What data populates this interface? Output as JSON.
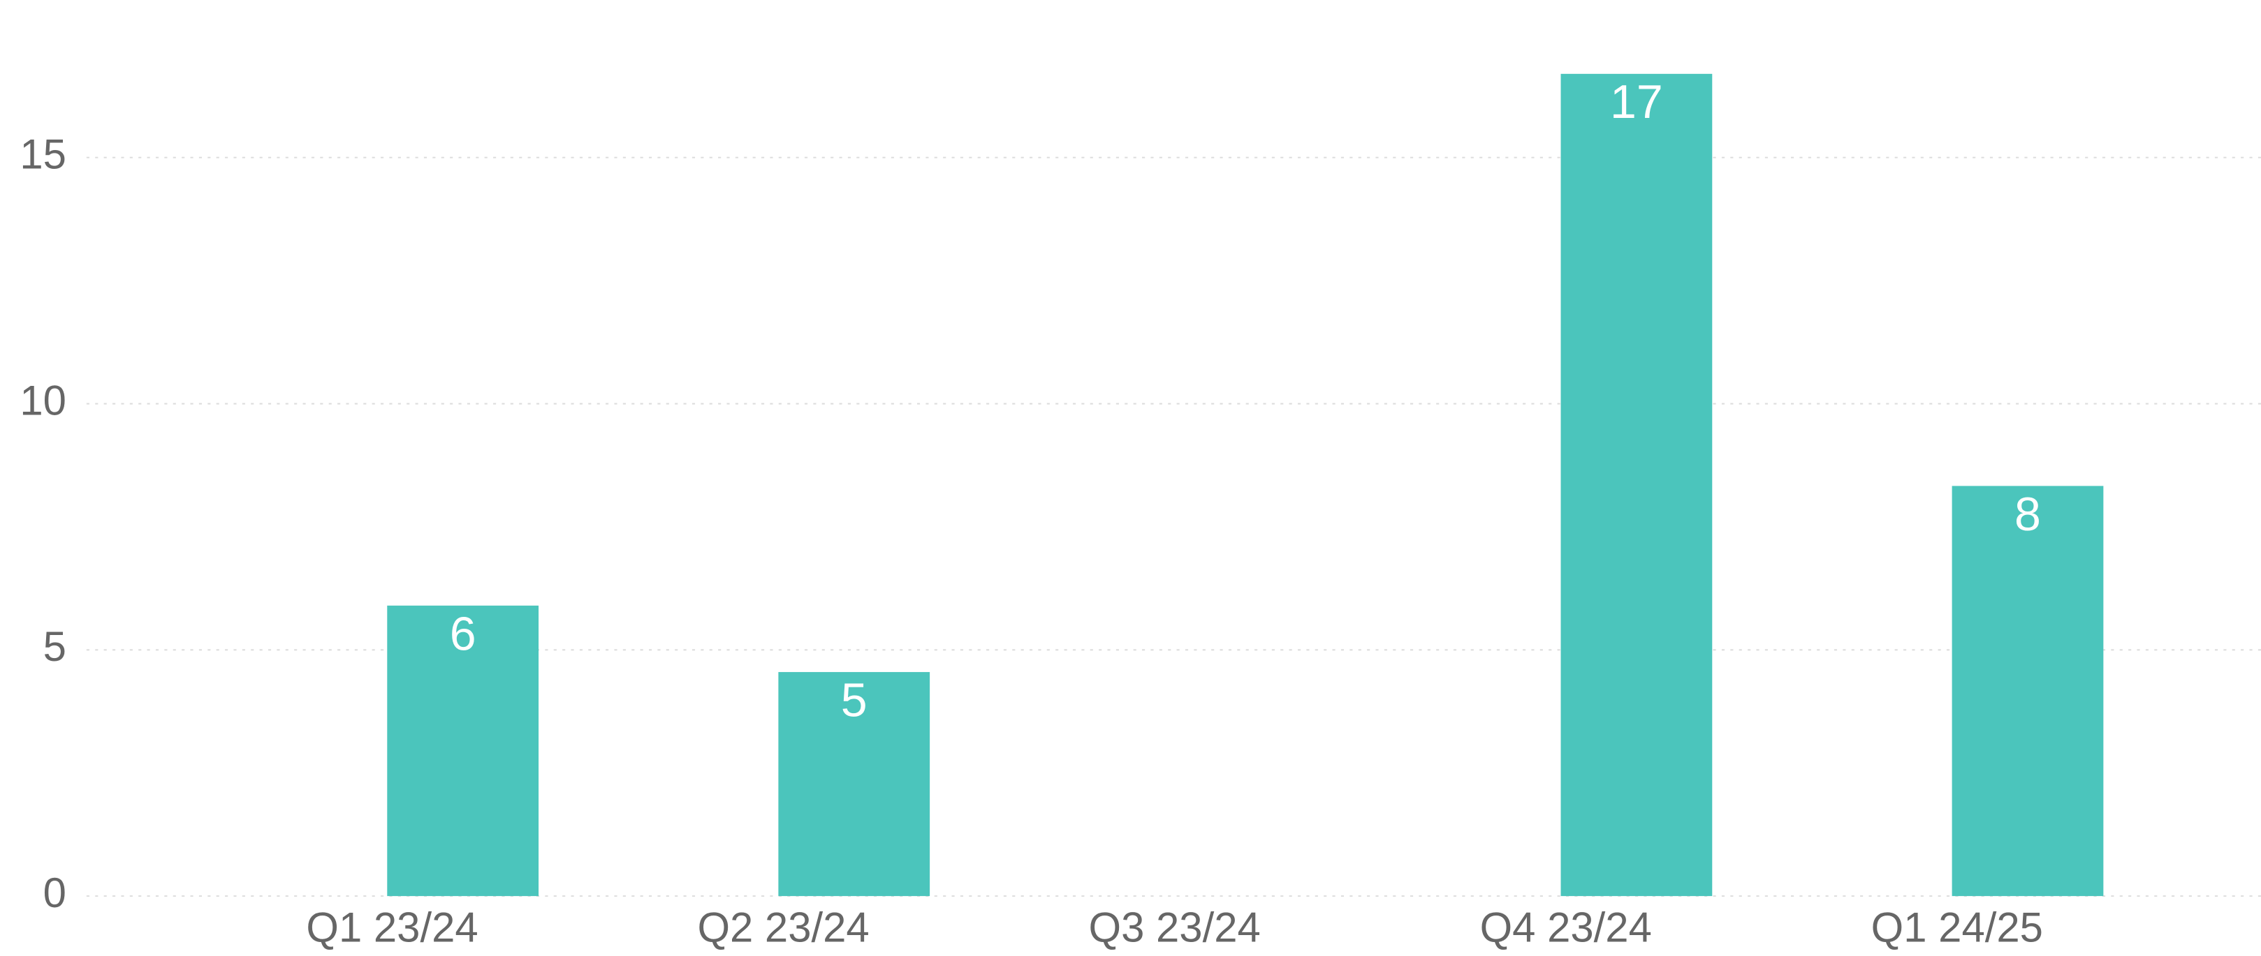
{
  "chart_data": {
    "type": "bar",
    "categories": [
      "Q1 23/24",
      "Q2 23/24",
      "Q3 23/24",
      "Q4 23/24",
      "Q1 24/25"
    ],
    "values": [
      5.9,
      4.55,
      null,
      16.7,
      8.33
    ],
    "value_labels": [
      "6",
      "5",
      null,
      "17",
      "8"
    ],
    "color": "#4bc5bc",
    "ylim": [
      0,
      18.2
    ],
    "yticks": [
      0,
      5,
      10,
      15
    ],
    "grid": true
  }
}
